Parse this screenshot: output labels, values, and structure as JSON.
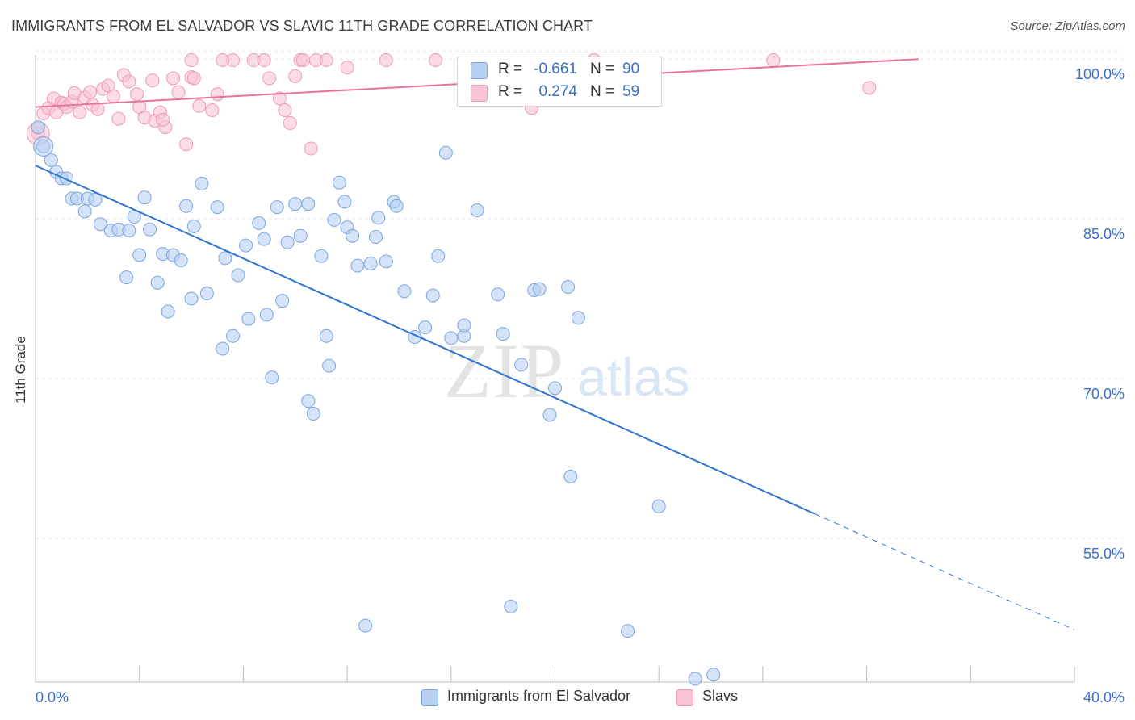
{
  "header": {
    "title": "IMMIGRANTS FROM EL SALVADOR VS SLAVIC 11TH GRADE CORRELATION CHART",
    "source": "Source: ZipAtlas.com"
  },
  "watermark": {
    "zip": "ZIP",
    "atlas": "atlas"
  },
  "colors": {
    "blue_fill": "#b8d0f2",
    "blue_stroke": "#7ca4e0",
    "blue_line": "#2f74d0",
    "pink_fill": "#f8c3d4",
    "pink_stroke": "#ee9ab5",
    "pink_line": "#e8739a",
    "value_text": "#3a6fc9"
  },
  "legend": {
    "rows": [
      {
        "r_label": "R = ",
        "r_value": "-0.661",
        "n_label": "N = ",
        "n_value": "90"
      },
      {
        "r_label": "R = ",
        "r_value": "0.274",
        "n_label": "N = ",
        "n_value": "59"
      }
    ]
  },
  "bottom_legend": {
    "series1": "Immigrants from El Salvador",
    "series2": "Slavs"
  },
  "chart_data": {
    "type": "scatter",
    "title": "IMMIGRANTS FROM EL SALVADOR VS SLAVIC 11TH GRADE CORRELATION CHART",
    "xlabel": "",
    "ylabel": "11th Grade",
    "xlim": [
      0,
      40
    ],
    "ylim": [
      41.5,
      101
    ],
    "x_tick_labels": [
      "0.0%",
      "40.0%"
    ],
    "y_ticks": [
      55,
      70,
      85,
      100
    ],
    "y_tick_labels": [
      "55.0%",
      "70.0%",
      "85.0%",
      "100.0%"
    ],
    "grid": true,
    "series": [
      {
        "name": "Immigrants from El Salvador",
        "color": "#b8d0f2",
        "r": -0.661,
        "n": 90,
        "trend": {
          "x0": 0,
          "y0": 90.0,
          "x1": 30,
          "y1": 57.3,
          "dash_to_x": 40,
          "dash_to_y": 46.4
        },
        "points": [
          [
            0.1,
            93.6
          ],
          [
            0.3,
            91.8
          ],
          [
            0.6,
            90.5
          ],
          [
            0.8,
            89.4
          ],
          [
            1.0,
            88.8
          ],
          [
            1.2,
            88.8
          ],
          [
            1.4,
            86.9
          ],
          [
            1.6,
            86.9
          ],
          [
            1.9,
            85.7
          ],
          [
            2.0,
            86.9
          ],
          [
            2.3,
            86.8
          ],
          [
            2.5,
            84.5
          ],
          [
            2.9,
            83.9
          ],
          [
            3.2,
            84.0
          ],
          [
            3.5,
            79.5
          ],
          [
            3.6,
            83.9
          ],
          [
            3.8,
            85.2
          ],
          [
            4.0,
            81.6
          ],
          [
            4.2,
            87.0
          ],
          [
            4.4,
            84.0
          ],
          [
            4.7,
            79.0
          ],
          [
            4.9,
            81.7
          ],
          [
            5.1,
            76.3
          ],
          [
            5.3,
            81.6
          ],
          [
            5.6,
            81.1
          ],
          [
            5.8,
            86.2
          ],
          [
            6.0,
            77.5
          ],
          [
            6.1,
            84.3
          ],
          [
            6.4,
            88.3
          ],
          [
            6.6,
            78.0
          ],
          [
            7.0,
            86.1
          ],
          [
            7.2,
            72.8
          ],
          [
            7.3,
            81.3
          ],
          [
            7.6,
            74.0
          ],
          [
            7.8,
            79.7
          ],
          [
            8.1,
            82.5
          ],
          [
            8.2,
            75.6
          ],
          [
            8.6,
            84.6
          ],
          [
            8.8,
            83.1
          ],
          [
            8.9,
            76.0
          ],
          [
            9.1,
            70.1
          ],
          [
            9.3,
            86.1
          ],
          [
            9.5,
            77.3
          ],
          [
            9.7,
            82.8
          ],
          [
            10.0,
            86.4
          ],
          [
            10.2,
            83.4
          ],
          [
            10.5,
            86.4
          ],
          [
            10.5,
            67.9
          ],
          [
            10.7,
            66.7
          ],
          [
            11.0,
            81.5
          ],
          [
            11.2,
            74.0
          ],
          [
            11.3,
            71.2
          ],
          [
            11.5,
            84.9
          ],
          [
            11.7,
            88.4
          ],
          [
            11.9,
            86.6
          ],
          [
            12.0,
            84.2
          ],
          [
            12.2,
            83.4
          ],
          [
            12.4,
            80.6
          ],
          [
            12.7,
            46.8
          ],
          [
            12.9,
            80.8
          ],
          [
            13.1,
            83.3
          ],
          [
            13.2,
            85.1
          ],
          [
            13.5,
            81.0
          ],
          [
            13.8,
            86.6
          ],
          [
            13.9,
            86.2
          ],
          [
            14.2,
            78.2
          ],
          [
            14.6,
            73.9
          ],
          [
            15.0,
            74.8
          ],
          [
            15.3,
            77.8
          ],
          [
            15.5,
            81.5
          ],
          [
            15.8,
            91.2
          ],
          [
            16.0,
            73.8
          ],
          [
            16.5,
            74.0
          ],
          [
            16.5,
            75.0
          ],
          [
            17.0,
            85.8
          ],
          [
            17.8,
            77.9
          ],
          [
            18.0,
            74.2
          ],
          [
            18.3,
            48.6
          ],
          [
            18.7,
            71.3
          ],
          [
            19.2,
            78.3
          ],
          [
            19.4,
            78.4
          ],
          [
            19.8,
            66.6
          ],
          [
            20.0,
            69.1
          ],
          [
            20.5,
            78.6
          ],
          [
            20.6,
            60.8
          ],
          [
            20.9,
            75.7
          ],
          [
            22.8,
            46.3
          ],
          [
            24.0,
            58.0
          ],
          [
            25.4,
            41.8
          ],
          [
            26.1,
            42.2
          ]
        ]
      },
      {
        "name": "Slavs",
        "color": "#f8c3d4",
        "r": 0.274,
        "n": 59,
        "trend": {
          "x0": 0,
          "y0": 95.5,
          "x1": 34,
          "y1": 100.0
        },
        "points": [
          [
            0.1,
            93.0
          ],
          [
            0.3,
            94.9
          ],
          [
            0.5,
            95.4
          ],
          [
            0.7,
            96.3
          ],
          [
            0.8,
            95.0
          ],
          [
            1.0,
            95.9
          ],
          [
            1.1,
            95.8
          ],
          [
            1.2,
            95.5
          ],
          [
            1.4,
            96.0
          ],
          [
            1.5,
            96.8
          ],
          [
            1.7,
            95.0
          ],
          [
            1.9,
            96.4
          ],
          [
            2.1,
            96.9
          ],
          [
            2.2,
            95.7
          ],
          [
            2.4,
            95.3
          ],
          [
            2.6,
            97.2
          ],
          [
            2.8,
            97.5
          ],
          [
            3.0,
            96.5
          ],
          [
            3.2,
            94.4
          ],
          [
            3.4,
            98.5
          ],
          [
            3.6,
            97.9
          ],
          [
            3.9,
            96.7
          ],
          [
            4.0,
            95.5
          ],
          [
            4.2,
            94.5
          ],
          [
            4.5,
            98.0
          ],
          [
            4.6,
            94.2
          ],
          [
            4.8,
            95.0
          ],
          [
            5.0,
            93.6
          ],
          [
            5.3,
            98.2
          ],
          [
            5.5,
            96.9
          ],
          [
            5.8,
            92.0
          ],
          [
            6.0,
            98.3
          ],
          [
            6.1,
            98.2
          ],
          [
            6.3,
            95.6
          ],
          [
            6.8,
            95.2
          ],
          [
            7.0,
            96.7
          ],
          [
            7.6,
            99.9
          ],
          [
            8.4,
            99.9
          ],
          [
            8.8,
            99.9
          ],
          [
            9.0,
            98.2
          ],
          [
            9.4,
            96.3
          ],
          [
            9.6,
            95.2
          ],
          [
            9.8,
            94.0
          ],
          [
            10.0,
            98.4
          ],
          [
            10.2,
            99.9
          ],
          [
            10.3,
            99.9
          ],
          [
            10.6,
            91.6
          ],
          [
            10.8,
            99.9
          ],
          [
            12.0,
            99.2
          ],
          [
            13.5,
            99.9
          ],
          [
            15.4,
            99.9
          ],
          [
            19.1,
            95.4
          ],
          [
            21.5,
            99.9
          ],
          [
            28.4,
            99.9
          ],
          [
            32.1,
            97.3
          ],
          [
            7.2,
            99.9
          ],
          [
            11.2,
            99.9
          ],
          [
            4.9,
            94.3
          ],
          [
            6.0,
            99.9
          ]
        ]
      }
    ]
  }
}
